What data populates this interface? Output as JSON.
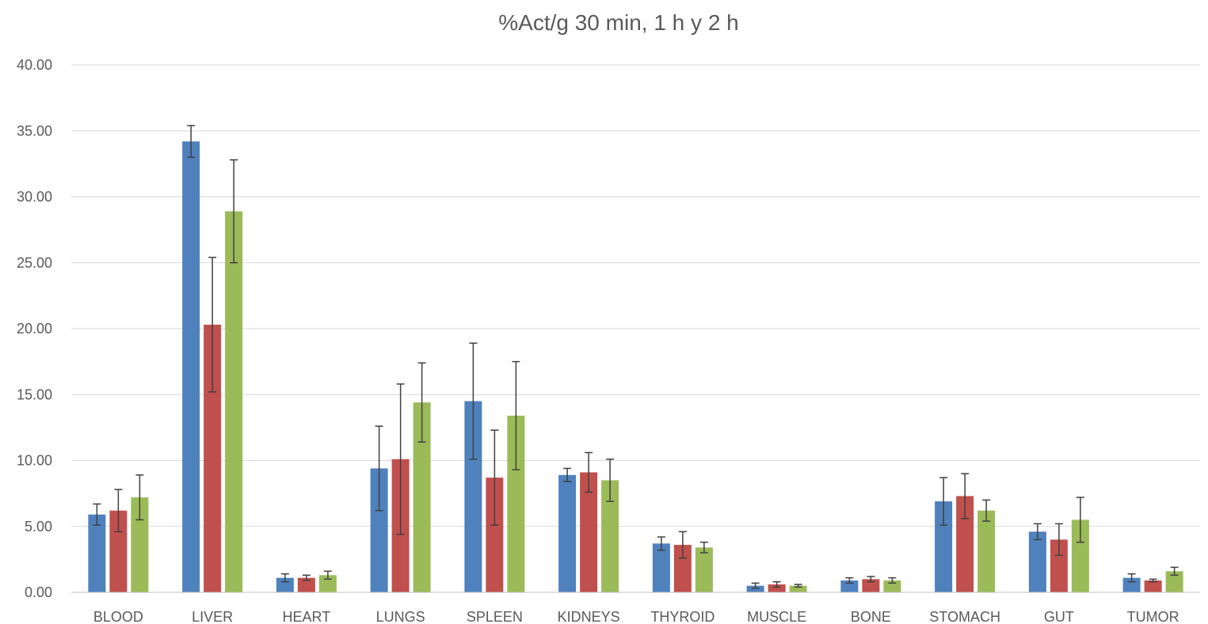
{
  "chart_data": {
    "type": "bar",
    "title": "%Act/g 30 min, 1 h y 2 h",
    "xlabel": "",
    "ylabel": "",
    "ylim": [
      0,
      40
    ],
    "yticks": [
      "0.00",
      "5.00",
      "10.00",
      "15.00",
      "20.00",
      "25.00",
      "30.00",
      "35.00",
      "40.00"
    ],
    "grid": true,
    "legend": "none",
    "categories": [
      "BLOOD",
      "LIVER",
      "HEART",
      "LUNGS",
      "SPLEEN",
      "KIDNEYS",
      "THYROID",
      "MUSCLE",
      "BONE",
      "STOMACH",
      "GUT",
      "TUMOR"
    ],
    "series": [
      {
        "color": "#4f81bd",
        "values": [
          5.9,
          34.2,
          1.1,
          9.4,
          14.5,
          8.9,
          3.7,
          0.5,
          0.9,
          6.9,
          4.6,
          1.1
        ],
        "errors": [
          0.8,
          1.2,
          0.3,
          3.2,
          4.4,
          0.5,
          0.5,
          0.2,
          0.2,
          1.8,
          0.6,
          0.3
        ]
      },
      {
        "color": "#c0504d",
        "values": [
          6.2,
          20.3,
          1.1,
          10.1,
          8.7,
          9.1,
          3.6,
          0.6,
          1.0,
          7.3,
          4.0,
          0.9
        ],
        "errors": [
          1.6,
          5.1,
          0.2,
          5.7,
          3.6,
          1.5,
          1.0,
          0.2,
          0.2,
          1.7,
          1.2,
          0.1
        ]
      },
      {
        "color": "#9bbb59",
        "values": [
          7.2,
          28.9,
          1.3,
          14.4,
          13.4,
          8.5,
          3.4,
          0.5,
          0.9,
          6.2,
          5.5,
          1.6
        ],
        "errors": [
          1.7,
          3.9,
          0.3,
          3.0,
          4.1,
          1.6,
          0.4,
          0.1,
          0.2,
          0.8,
          1.7,
          0.3
        ]
      }
    ]
  }
}
